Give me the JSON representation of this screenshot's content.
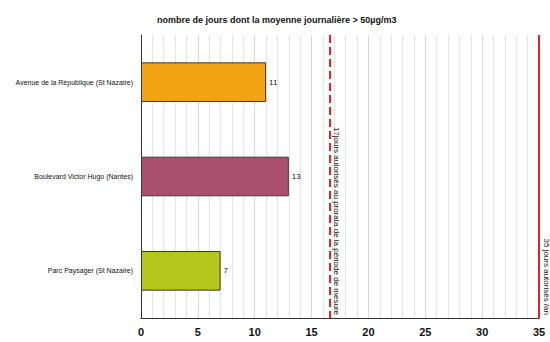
{
  "chart_data": {
    "type": "bar",
    "orientation": "horizontal",
    "title": "nombre de jours dont la moyenne journalière > 50µg/m3",
    "categories": [
      "Avenue de la République (St Nazaire)",
      "Boulevard Victor Hugo (Nantes)",
      "Parc Paysager (St Nazaire)"
    ],
    "values": [
      11,
      13,
      7
    ],
    "colors": [
      "#f2a414",
      "#a9506f",
      "#b5c61c"
    ],
    "xlim": [
      0,
      35
    ],
    "xticks": [
      0,
      5,
      10,
      15,
      20,
      25,
      30,
      35
    ],
    "grid": true,
    "data_labels": true,
    "annotations": [
      {
        "x": 16.6,
        "text": "17jours autorisés au prorata de la période de mesure",
        "line_style": "dashed",
        "color": "#e3222b"
      },
      {
        "x": 35,
        "text": "35 jours autorisés /an",
        "line_style": "solid",
        "color": "#e3222b"
      }
    ]
  }
}
